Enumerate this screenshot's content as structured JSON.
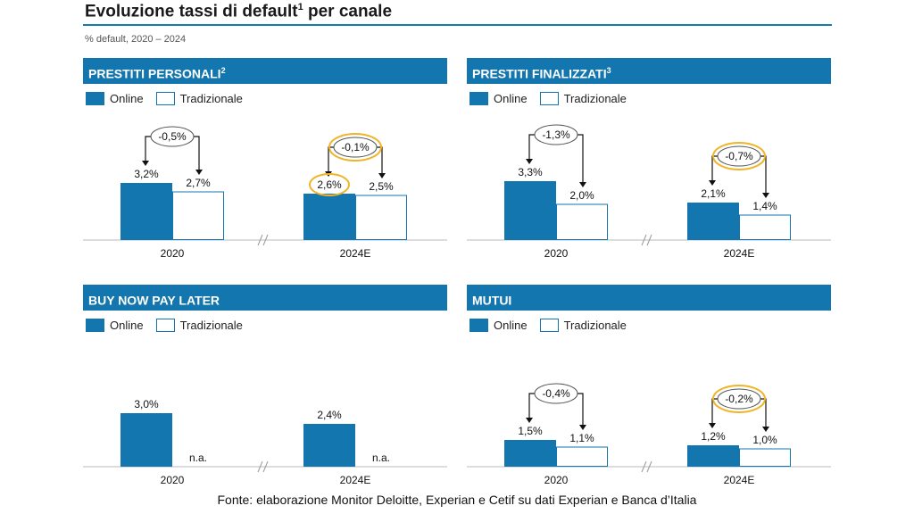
{
  "header": {
    "title": "Evoluzione tassi di default",
    "title_sup": "1",
    "title_suffix": " per canale",
    "subtitle": "% default, 2020 – 2024"
  },
  "legend": {
    "online": "Online",
    "traditional": "Tradizionale"
  },
  "colors": {
    "online": "#1376ae",
    "traditional": "#ffffff",
    "highlight": "#f0b429"
  },
  "footer": {
    "source": "Fonte: elaborazione Monitor Deloitte, Experian e Cetif su dati Experian e Banca d’Italia"
  },
  "chart_data": [
    {
      "type": "bar",
      "title": "PRESTITI PERSONALI",
      "title_sup": "2",
      "categories": [
        "2020",
        "2024E"
      ],
      "series": [
        {
          "name": "Online",
          "values": [
            3.2,
            2.6
          ],
          "labels": [
            "3,2%",
            "2,6%"
          ]
        },
        {
          "name": "Tradizionale",
          "values": [
            2.7,
            2.5
          ],
          "labels": [
            "2,7%",
            "2,5%"
          ]
        }
      ],
      "differences": [
        "-0,5%",
        "-0,1%"
      ],
      "highlighted": [
        "2024E difference",
        "2024E Online label"
      ],
      "ylim": [
        0,
        5.5
      ]
    },
    {
      "type": "bar",
      "title": "PRESTITI FINALIZZATI",
      "title_sup": "3",
      "categories": [
        "2020",
        "2024E"
      ],
      "series": [
        {
          "name": "Online",
          "values": [
            3.3,
            2.1
          ],
          "labels": [
            "3,3%",
            "2,1%"
          ]
        },
        {
          "name": "Tradizionale",
          "values": [
            2.0,
            1.4
          ],
          "labels": [
            "2,0%",
            "1,4%"
          ]
        }
      ],
      "differences": [
        "-1,3%",
        "-0,7%"
      ],
      "highlighted": [
        "2024E difference"
      ],
      "ylim": [
        0,
        5.5
      ]
    },
    {
      "type": "bar",
      "title": "BUY NOW PAY LATER",
      "title_sup": "",
      "categories": [
        "2020",
        "2024E"
      ],
      "series": [
        {
          "name": "Online",
          "values": [
            3.0,
            2.4
          ],
          "labels": [
            "3,0%",
            "2,4%"
          ]
        },
        {
          "name": "Tradizionale",
          "values": [
            null,
            null
          ],
          "labels": [
            "n.a.",
            "n.a."
          ]
        }
      ],
      "differences": [],
      "highlighted": [],
      "ylim": [
        0,
        5.5
      ]
    },
    {
      "type": "bar",
      "title": "MUTUI",
      "title_sup": "",
      "categories": [
        "2020",
        "2024E"
      ],
      "series": [
        {
          "name": "Online",
          "values": [
            1.5,
            1.2
          ],
          "labels": [
            "1,5%",
            "1,2%"
          ]
        },
        {
          "name": "Tradizionale",
          "values": [
            1.1,
            1.0
          ],
          "labels": [
            "1,1%",
            "1,0%"
          ]
        }
      ],
      "differences": [
        "-0,4%",
        "-0,2%"
      ],
      "highlighted": [
        "2024E difference"
      ],
      "ylim": [
        0,
        5.5
      ]
    }
  ]
}
